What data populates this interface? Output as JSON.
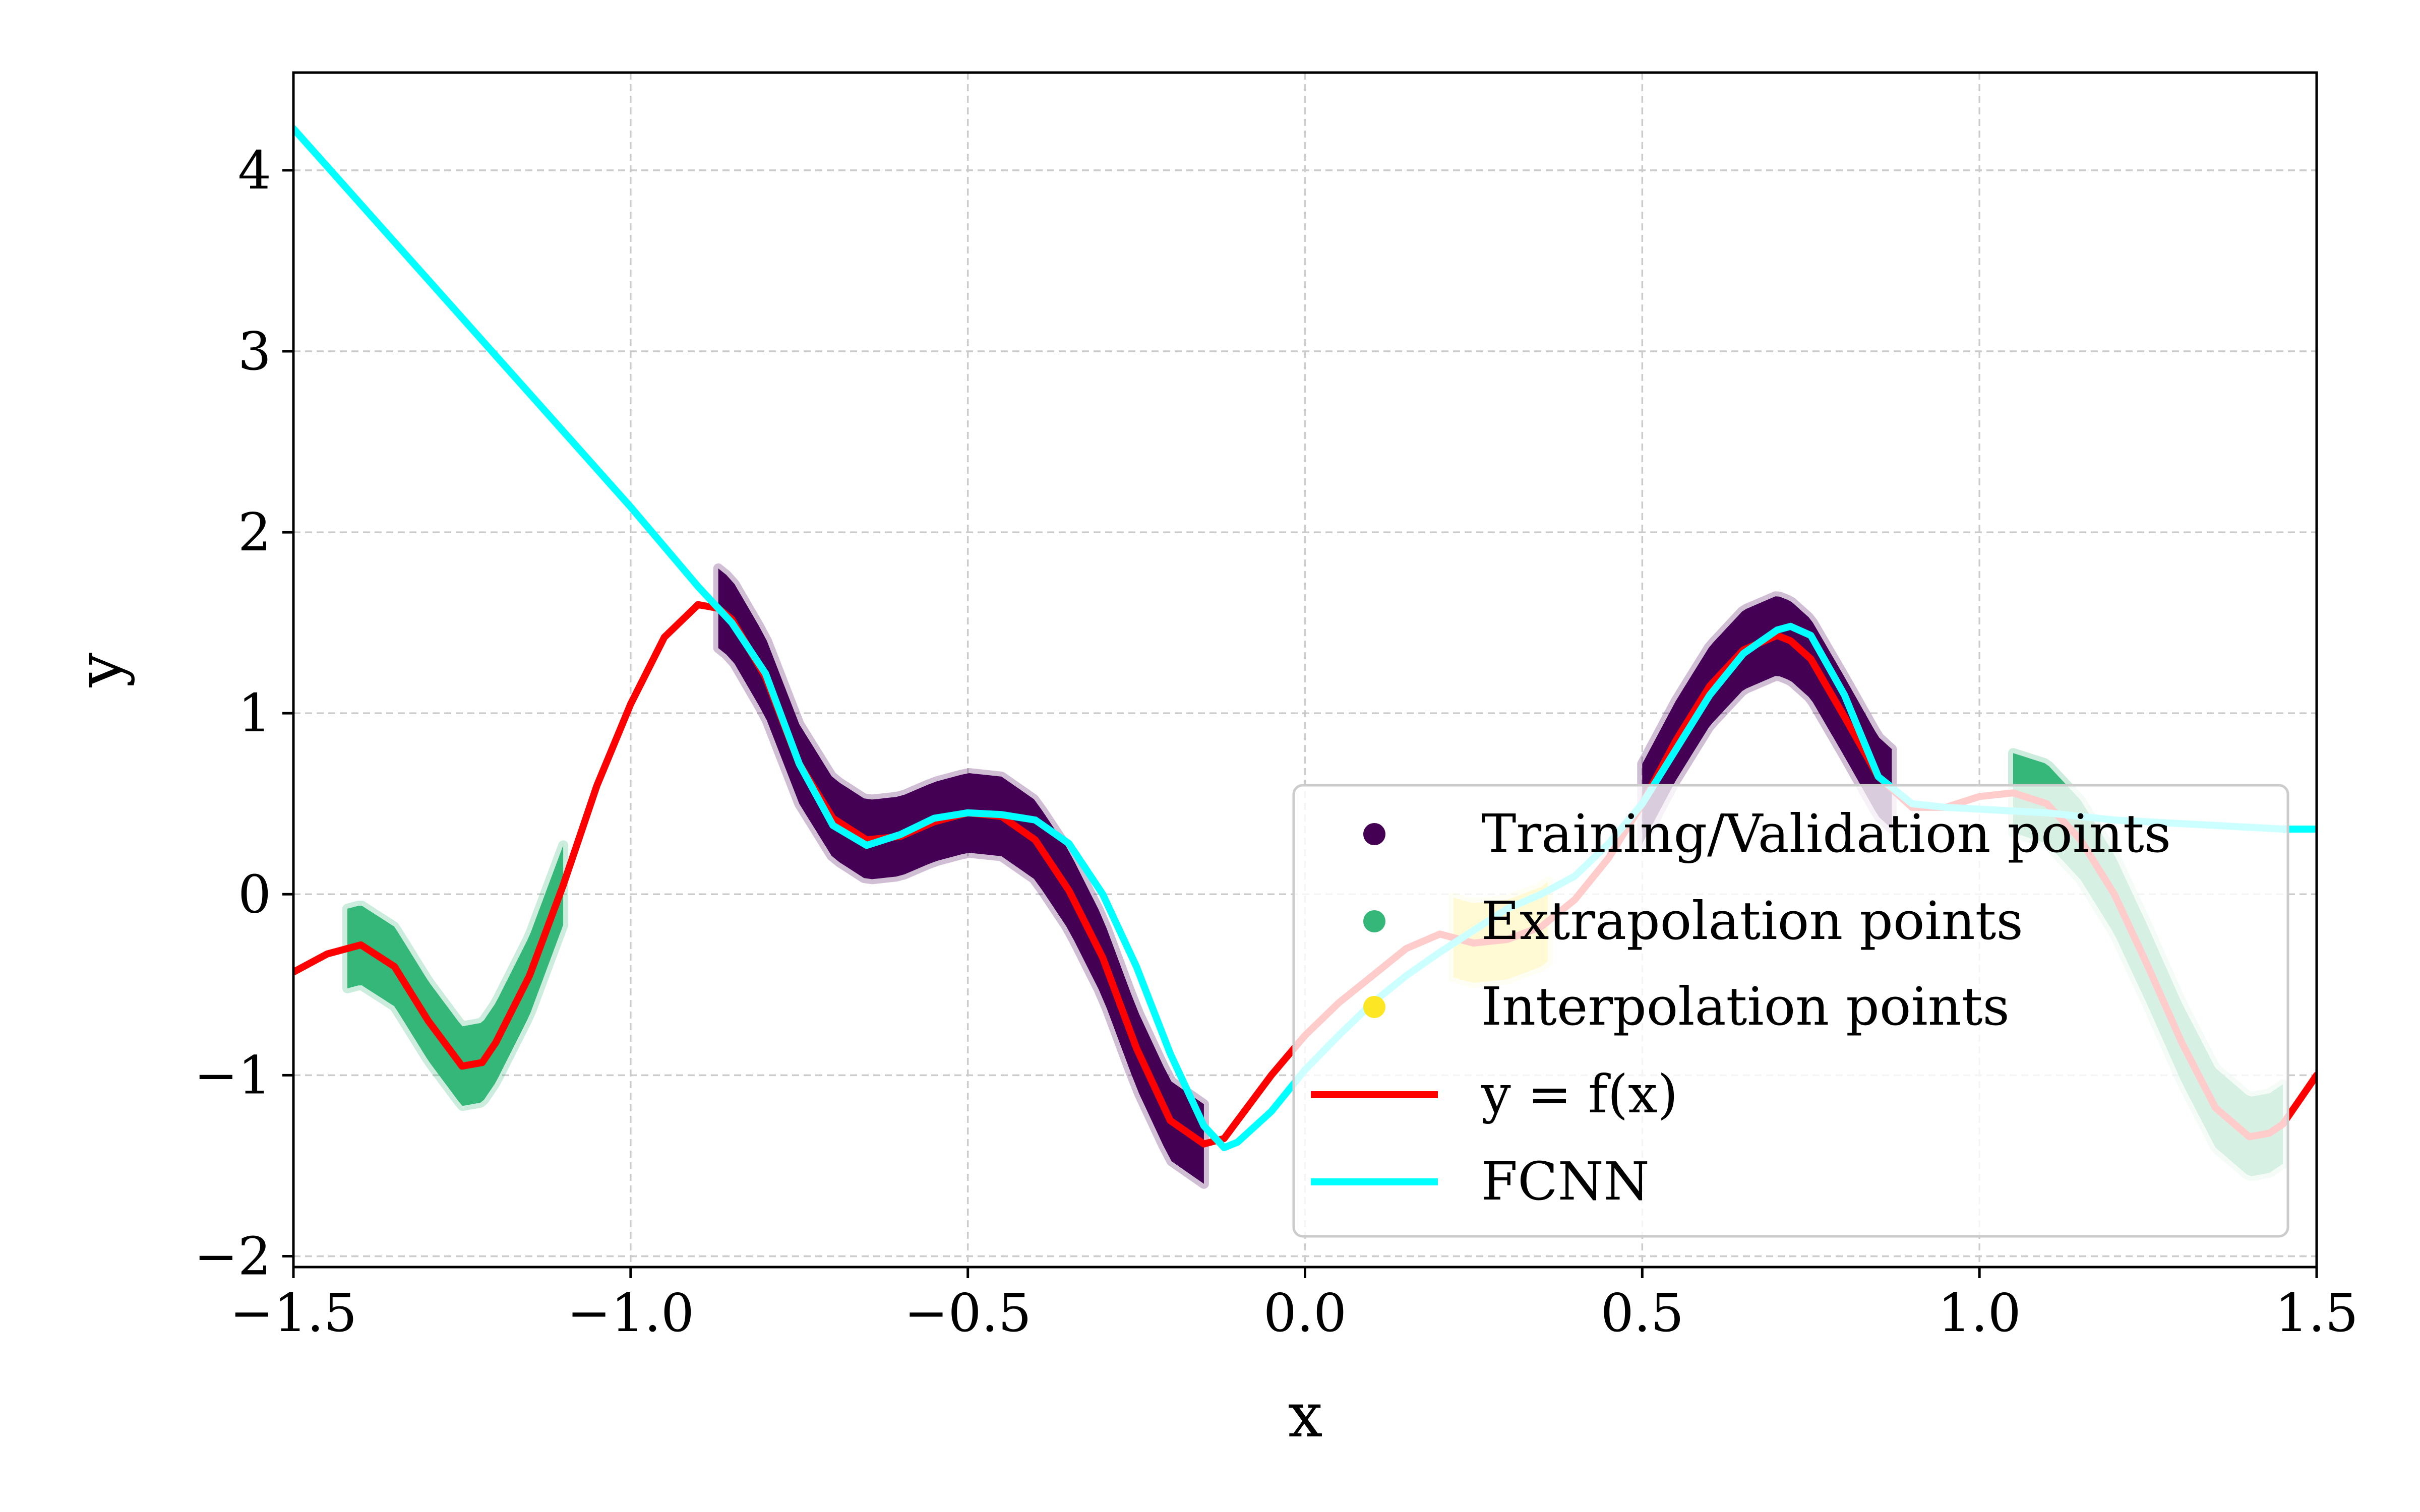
{
  "chart_data": {
    "type": "line",
    "xlabel": "x",
    "ylabel": "y",
    "xlim": [
      -1.5,
      1.5
    ],
    "ylim": [
      -2.06,
      4.54
    ],
    "x_ticks": [
      -1.5,
      -1.0,
      -0.5,
      0.0,
      0.5,
      1.0,
      1.5
    ],
    "x_tick_labels": [
      "−1.5",
      "−1.0",
      "−0.5",
      "0.0",
      "0.5",
      "1.0",
      "1.5"
    ],
    "y_ticks": [
      -2,
      -1,
      0,
      1,
      2,
      3,
      4
    ],
    "y_tick_labels": [
      "−2",
      "−1",
      "0",
      "1",
      "2",
      "3",
      "4"
    ],
    "grid": true,
    "legend_position": "lower-right",
    "point_bands": [
      {
        "name": "Training/Validation points",
        "color": "#440154",
        "x_ranges": [
          [
            -0.87,
            -0.15
          ],
          [
            0.5,
            0.87
          ]
        ],
        "noise": 0.22,
        "opacity": 1.0
      },
      {
        "name": "Extrapolation points",
        "color": "#35b779",
        "x_ranges": [
          [
            -1.42,
            -1.1
          ],
          [
            1.05,
            1.45
          ]
        ],
        "noise": 0.22,
        "opacity": 1.0
      },
      {
        "name": "Interpolation points",
        "color": "#fde725",
        "x_ranges": [
          [
            0.22,
            0.36
          ]
        ],
        "noise": 0.22,
        "opacity": 1.0
      }
    ],
    "series": [
      {
        "name": "y = f(x)",
        "color": "#ff0000",
        "x": [
          -1.5,
          -1.45,
          -1.4,
          -1.35,
          -1.3,
          -1.25,
          -1.22,
          -1.2,
          -1.15,
          -1.1,
          -1.05,
          -1.0,
          -0.95,
          -0.9,
          -0.87,
          -0.85,
          -0.8,
          -0.75,
          -0.7,
          -0.65,
          -0.6,
          -0.55,
          -0.5,
          -0.45,
          -0.4,
          -0.35,
          -0.3,
          -0.25,
          -0.2,
          -0.15,
          -0.12,
          -0.1,
          -0.05,
          0.0,
          0.05,
          0.1,
          0.15,
          0.2,
          0.25,
          0.3,
          0.35,
          0.4,
          0.45,
          0.5,
          0.55,
          0.6,
          0.65,
          0.7,
          0.72,
          0.75,
          0.8,
          0.85,
          0.9,
          0.95,
          1.0,
          1.05,
          1.1,
          1.15,
          1.2,
          1.25,
          1.3,
          1.35,
          1.4,
          1.43,
          1.45,
          1.5
        ],
        "y": [
          -0.43,
          -0.33,
          -0.28,
          -0.4,
          -0.7,
          -0.95,
          -0.93,
          -0.82,
          -0.45,
          0.05,
          0.6,
          1.05,
          1.42,
          1.6,
          1.58,
          1.52,
          1.2,
          0.72,
          0.42,
          0.3,
          0.32,
          0.4,
          0.45,
          0.43,
          0.3,
          0.02,
          -0.35,
          -0.85,
          -1.25,
          -1.38,
          -1.35,
          -1.25,
          -1.0,
          -0.78,
          -0.6,
          -0.45,
          -0.3,
          -0.22,
          -0.27,
          -0.25,
          -0.18,
          -0.03,
          0.2,
          0.5,
          0.85,
          1.15,
          1.35,
          1.43,
          1.4,
          1.3,
          0.98,
          0.65,
          0.48,
          0.48,
          0.54,
          0.56,
          0.5,
          0.3,
          0.0,
          -0.4,
          -0.82,
          -1.18,
          -1.34,
          -1.32,
          -1.27,
          -1.0
        ]
      },
      {
        "name": "FCNN",
        "color": "#00ffff",
        "x": [
          -1.5,
          -1.0,
          -0.9,
          -0.87,
          -0.85,
          -0.8,
          -0.75,
          -0.7,
          -0.65,
          -0.6,
          -0.55,
          -0.5,
          -0.45,
          -0.4,
          -0.35,
          -0.3,
          -0.25,
          -0.2,
          -0.15,
          -0.12,
          -0.1,
          -0.05,
          0.0,
          0.05,
          0.1,
          0.15,
          0.2,
          0.25,
          0.3,
          0.35,
          0.4,
          0.45,
          0.5,
          0.55,
          0.6,
          0.65,
          0.7,
          0.72,
          0.75,
          0.8,
          0.85,
          0.9,
          0.95,
          1.0,
          1.05,
          1.1,
          1.15,
          1.2,
          1.25,
          1.3,
          1.35,
          1.4,
          1.45,
          1.5
        ],
        "y": [
          4.23,
          2.14,
          1.7,
          1.58,
          1.5,
          1.22,
          0.72,
          0.38,
          0.27,
          0.33,
          0.42,
          0.45,
          0.44,
          0.41,
          0.28,
          0.0,
          -0.4,
          -0.88,
          -1.28,
          -1.4,
          -1.37,
          -1.2,
          -0.97,
          -0.78,
          -0.6,
          -0.45,
          -0.32,
          -0.2,
          -0.08,
          0.0,
          0.1,
          0.28,
          0.5,
          0.8,
          1.1,
          1.33,
          1.46,
          1.48,
          1.43,
          1.1,
          0.65,
          0.5,
          0.48,
          0.47,
          0.46,
          0.45,
          0.43,
          0.41,
          0.4,
          0.39,
          0.38,
          0.37,
          0.36,
          0.36
        ]
      }
    ]
  }
}
